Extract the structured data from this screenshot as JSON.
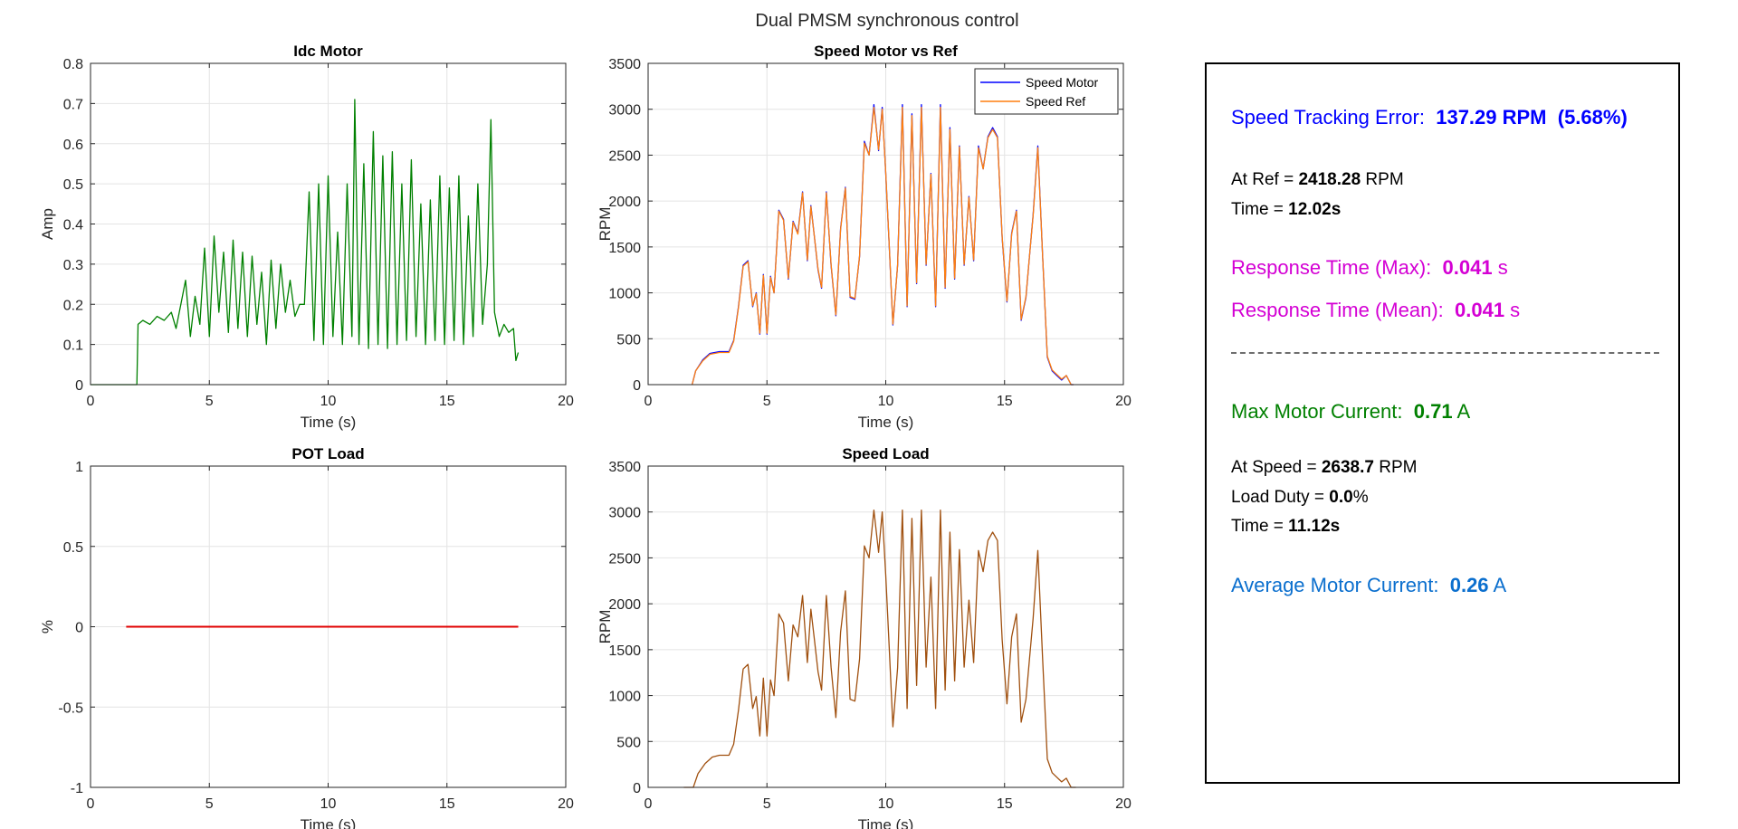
{
  "figure": {
    "title": "Dual PMSM synchronous control"
  },
  "colors": {
    "idc": "#008000",
    "speed_motor": "#0000ff",
    "speed_ref": "#ff7f0e",
    "pot_load": "#e00000",
    "speed_load": "#a0500f"
  },
  "chart_data": [
    {
      "id": "idc",
      "type": "line",
      "title": "Idc Motor",
      "xlabel": "Time (s)",
      "ylabel": "Amp",
      "xlim": [
        0,
        20
      ],
      "ylim": [
        0,
        0.8
      ],
      "xticks": [
        "0",
        "5",
        "10",
        "15",
        "20"
      ],
      "yticks": [
        "0",
        "0.1",
        "0.2",
        "0.3",
        "0.4",
        "0.5",
        "0.6",
        "0.7",
        "0.8"
      ],
      "grid": true,
      "series": [
        {
          "color": "#008000",
          "x": [
            0,
            1.8,
            1.95,
            2.0,
            2.2,
            2.5,
            2.8,
            3.1,
            3.4,
            3.6,
            3.8,
            4.0,
            4.2,
            4.4,
            4.6,
            4.8,
            5.0,
            5.2,
            5.4,
            5.6,
            5.8,
            6.0,
            6.2,
            6.4,
            6.6,
            6.8,
            7.0,
            7.2,
            7.4,
            7.6,
            7.8,
            8.0,
            8.2,
            8.4,
            8.6,
            8.8,
            9.0,
            9.2,
            9.4,
            9.6,
            9.8,
            10.0,
            10.2,
            10.4,
            10.6,
            10.8,
            11.0,
            11.12,
            11.3,
            11.5,
            11.7,
            11.9,
            12.1,
            12.3,
            12.5,
            12.7,
            12.9,
            13.1,
            13.3,
            13.5,
            13.7,
            13.9,
            14.1,
            14.3,
            14.5,
            14.7,
            14.9,
            15.1,
            15.3,
            15.5,
            15.7,
            15.9,
            16.1,
            16.3,
            16.5,
            16.7,
            16.85,
            17.0,
            17.2,
            17.4,
            17.6,
            17.8,
            17.9,
            18.0
          ],
          "y": [
            0,
            0,
            0,
            0.15,
            0.16,
            0.15,
            0.17,
            0.16,
            0.18,
            0.14,
            0.2,
            0.26,
            0.12,
            0.22,
            0.15,
            0.34,
            0.12,
            0.37,
            0.18,
            0.33,
            0.13,
            0.36,
            0.14,
            0.33,
            0.12,
            0.32,
            0.15,
            0.28,
            0.1,
            0.31,
            0.14,
            0.3,
            0.18,
            0.26,
            0.17,
            0.2,
            0.2,
            0.48,
            0.11,
            0.5,
            0.1,
            0.52,
            0.12,
            0.38,
            0.1,
            0.5,
            0.12,
            0.71,
            0.1,
            0.55,
            0.09,
            0.63,
            0.1,
            0.57,
            0.09,
            0.58,
            0.1,
            0.5,
            0.11,
            0.56,
            0.12,
            0.45,
            0.1,
            0.46,
            0.11,
            0.52,
            0.1,
            0.49,
            0.11,
            0.52,
            0.1,
            0.42,
            0.12,
            0.5,
            0.15,
            0.3,
            0.66,
            0.18,
            0.12,
            0.15,
            0.13,
            0.14,
            0.06,
            0.08
          ]
        }
      ]
    },
    {
      "id": "speed",
      "type": "line",
      "title": "Speed Motor vs Ref",
      "xlabel": "Time (s)",
      "ylabel": "RPM",
      "xlim": [
        0,
        20
      ],
      "ylim": [
        0,
        3500
      ],
      "xticks": [
        "0",
        "5",
        "10",
        "15",
        "20"
      ],
      "yticks": [
        "0",
        "500",
        "1000",
        "1500",
        "2000",
        "2500",
        "3000",
        "3500"
      ],
      "grid": true,
      "legend": {
        "position": "top-right"
      },
      "series": [
        {
          "name": "Speed Motor",
          "color": "#0000ff",
          "x": [
            1.85,
            2.0,
            2.3,
            2.6,
            3.0,
            3.4,
            3.6,
            3.8,
            4.0,
            4.2,
            4.4,
            4.55,
            4.7,
            4.85,
            5.0,
            5.15,
            5.3,
            5.5,
            5.7,
            5.9,
            6.1,
            6.3,
            6.5,
            6.7,
            6.85,
            7.0,
            7.15,
            7.3,
            7.5,
            7.7,
            7.9,
            8.1,
            8.3,
            8.5,
            8.7,
            8.9,
            9.1,
            9.3,
            9.5,
            9.7,
            9.85,
            10.0,
            10.15,
            10.3,
            10.5,
            10.7,
            10.9,
            11.1,
            11.3,
            11.5,
            11.7,
            11.9,
            12.1,
            12.3,
            12.5,
            12.7,
            12.9,
            13.1,
            13.3,
            13.5,
            13.7,
            13.9,
            14.1,
            14.3,
            14.5,
            14.7,
            14.9,
            15.1,
            15.3,
            15.5,
            15.7,
            15.9,
            16.05,
            16.2,
            16.4,
            16.6,
            16.8,
            17.0,
            17.2,
            17.4,
            17.6,
            17.8,
            17.9
          ],
          "y": [
            0,
            150,
            270,
            340,
            360,
            360,
            480,
            850,
            1300,
            1350,
            850,
            1000,
            550,
            1200,
            550,
            1180,
            1000,
            1900,
            1800,
            1150,
            1780,
            1650,
            2100,
            1350,
            1950,
            1600,
            1250,
            1050,
            2100,
            1300,
            750,
            1700,
            2150,
            950,
            930,
            1400,
            2650,
            2500,
            3050,
            2550,
            3020,
            2300,
            1500,
            650,
            1300,
            3050,
            850,
            2950,
            1100,
            3050,
            1300,
            2300,
            850,
            3050,
            1050,
            2800,
            1150,
            2600,
            1300,
            2050,
            1350,
            2600,
            2350,
            2700,
            2800,
            2700,
            1600,
            900,
            1650,
            1900,
            700,
            950,
            1400,
            1850,
            2600,
            1400,
            300,
            150,
            100,
            50,
            100,
            0,
            0
          ]
        },
        {
          "name": "Speed Ref",
          "color": "#ff7f0e",
          "x": [
            1.85,
            2.0,
            2.3,
            2.6,
            3.0,
            3.4,
            3.6,
            3.8,
            4.0,
            4.2,
            4.4,
            4.55,
            4.7,
            4.85,
            5.0,
            5.15,
            5.3,
            5.5,
            5.7,
            5.9,
            6.1,
            6.3,
            6.5,
            6.7,
            6.85,
            7.0,
            7.15,
            7.3,
            7.5,
            7.7,
            7.9,
            8.1,
            8.3,
            8.5,
            8.7,
            8.9,
            9.1,
            9.3,
            9.5,
            9.7,
            9.85,
            10.0,
            10.15,
            10.3,
            10.5,
            10.7,
            10.9,
            11.1,
            11.3,
            11.5,
            11.7,
            11.9,
            12.1,
            12.3,
            12.5,
            12.7,
            12.9,
            13.1,
            13.3,
            13.5,
            13.7,
            13.9,
            14.1,
            14.3,
            14.5,
            14.7,
            14.9,
            15.1,
            15.3,
            15.5,
            15.7,
            15.9,
            16.05,
            16.2,
            16.4,
            16.6,
            16.8,
            17.0,
            17.2,
            17.4,
            17.6,
            17.8,
            17.9
          ],
          "y": [
            0,
            150,
            260,
            330,
            350,
            350,
            470,
            840,
            1290,
            1340,
            860,
            990,
            560,
            1190,
            560,
            1170,
            1000,
            1890,
            1790,
            1160,
            1770,
            1640,
            2090,
            1360,
            1940,
            1600,
            1260,
            1060,
            2090,
            1310,
            760,
            1690,
            2140,
            960,
            940,
            1400,
            2630,
            2500,
            3020,
            2560,
            3000,
            2310,
            1510,
            660,
            1300,
            3020,
            860,
            2930,
            1110,
            3020,
            1310,
            2290,
            860,
            3020,
            1060,
            2780,
            1160,
            2590,
            1310,
            2040,
            1360,
            2580,
            2350,
            2690,
            2780,
            2690,
            1610,
            910,
            1640,
            1890,
            710,
            960,
            1400,
            1840,
            2580,
            1400,
            310,
            160,
            110,
            60,
            100,
            0,
            0
          ]
        }
      ]
    },
    {
      "id": "pot",
      "type": "line",
      "title": "POT Load",
      "xlabel": "Time (s)",
      "ylabel": "%",
      "xlim": [
        0,
        20
      ],
      "ylim": [
        -1,
        1
      ],
      "xticks": [
        "0",
        "5",
        "10",
        "15",
        "20"
      ],
      "yticks": [
        "-1",
        "-0.5",
        "0",
        "0.5",
        "1"
      ],
      "grid": true,
      "series": [
        {
          "color": "#e00000",
          "x": [
            1.5,
            18.0
          ],
          "y": [
            0,
            0
          ]
        }
      ]
    },
    {
      "id": "speedload",
      "type": "line",
      "title": "Speed Load",
      "xlabel": "Time (s)",
      "ylabel": "RPM",
      "xlim": [
        0,
        20
      ],
      "ylim": [
        0,
        3500
      ],
      "xticks": [
        "0",
        "5",
        "10",
        "15",
        "20"
      ],
      "yticks": [
        "0",
        "500",
        "1000",
        "1500",
        "2000",
        "2500",
        "3000",
        "3500"
      ],
      "grid": true,
      "series": [
        {
          "color": "#a0500f",
          "x": [
            1.5,
            1.9,
            2.1,
            2.4,
            2.7,
            3.0,
            3.4,
            3.6,
            3.8,
            4.0,
            4.2,
            4.4,
            4.55,
            4.7,
            4.85,
            5.0,
            5.15,
            5.3,
            5.5,
            5.7,
            5.9,
            6.1,
            6.3,
            6.5,
            6.7,
            6.85,
            7.0,
            7.15,
            7.3,
            7.5,
            7.7,
            7.9,
            8.1,
            8.3,
            8.5,
            8.7,
            8.9,
            9.1,
            9.3,
            9.5,
            9.7,
            9.85,
            10.0,
            10.15,
            10.3,
            10.5,
            10.7,
            10.9,
            11.1,
            11.3,
            11.5,
            11.7,
            11.9,
            12.1,
            12.3,
            12.5,
            12.7,
            12.9,
            13.1,
            13.3,
            13.5,
            13.7,
            13.9,
            14.1,
            14.3,
            14.5,
            14.7,
            14.9,
            15.1,
            15.3,
            15.5,
            15.7,
            15.9,
            16.05,
            16.2,
            16.4,
            16.6,
            16.8,
            17.0,
            17.2,
            17.4,
            17.6,
            17.8,
            17.9,
            18.0
          ],
          "y": [
            0,
            0,
            150,
            260,
            330,
            350,
            350,
            470,
            840,
            1290,
            1340,
            860,
            990,
            560,
            1190,
            560,
            1170,
            1000,
            1890,
            1790,
            1160,
            1770,
            1640,
            2090,
            1360,
            1940,
            1600,
            1260,
            1060,
            2090,
            1310,
            760,
            1690,
            2140,
            960,
            940,
            1400,
            2630,
            2500,
            3020,
            2560,
            3000,
            2310,
            1510,
            660,
            1300,
            3020,
            860,
            2930,
            1110,
            3020,
            1310,
            2290,
            860,
            3020,
            1060,
            2780,
            1160,
            2590,
            1310,
            2040,
            1360,
            2580,
            2350,
            2690,
            2780,
            2690,
            1610,
            910,
            1640,
            1890,
            710,
            960,
            1400,
            1840,
            2580,
            1400,
            310,
            160,
            110,
            60,
            100,
            0,
            0,
            0
          ]
        }
      ]
    }
  ],
  "info": {
    "tracking_label": "Speed Tracking Error:",
    "tracking_value": "137.29 RPM",
    "tracking_pct": "(5.68%)",
    "atref_label": "At Ref = ",
    "atref_value": "2418.28",
    "atref_unit": " RPM",
    "time1_label": "Time = ",
    "time1_value": "12.02s",
    "resp_max_label": "Response Time (Max):",
    "resp_max_value": "0.041",
    "resp_max_unit": " s",
    "resp_mean_label": "Response Time (Mean):",
    "resp_mean_value": "0.041",
    "resp_mean_unit": " s",
    "maxcur_label": "Max Motor Current:",
    "maxcur_value": "0.71",
    "maxcur_unit": " A",
    "atspeed_label": "At Speed = ",
    "atspeed_value": "2638.7",
    "atspeed_unit": " RPM",
    "duty_label": "Load Duty = ",
    "duty_value": "0.0",
    "duty_unit": "%",
    "time2_label": "Time = ",
    "time2_value": "11.12s",
    "avgcur_label": "Average Motor Current:",
    "avgcur_value": "0.26",
    "avgcur_unit": " A"
  }
}
